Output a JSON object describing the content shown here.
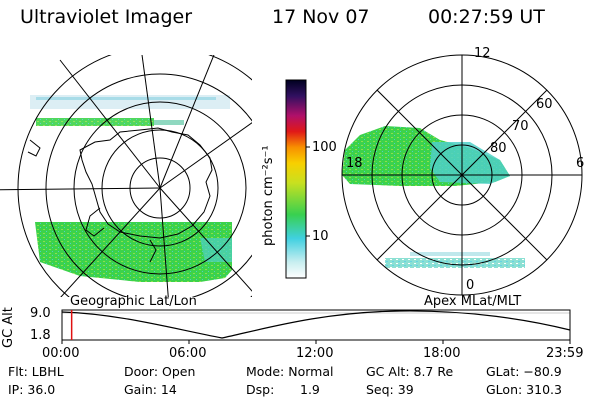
{
  "header": {
    "instrument": "Ultraviolet Imager",
    "date": "17 Nov 07",
    "time": "00:27:59 UT"
  },
  "colorbar": {
    "label": "photon cm⁻²s⁻¹",
    "ticks": [
      "100",
      "10"
    ]
  },
  "geo_panel": {
    "caption": "Geographic Lat/Lon"
  },
  "apex_panel": {
    "caption": "Apex MLat/MLT",
    "labels": {
      "t12": "12",
      "t18": "18",
      "t6": "6",
      "t0": "0",
      "l60": "60",
      "l70": "70",
      "l80": "80"
    }
  },
  "altitude_plot": {
    "ylabel": "GC Alt",
    "yticks": [
      "9.0",
      "1.8"
    ],
    "xticks": [
      "00:00",
      "06:00",
      "12:00",
      "18:00",
      "23:59"
    ],
    "marker_fraction": 0.019
  },
  "status": {
    "flt": "Flt: LBHL",
    "ip": "IP: 36.0",
    "door": "Door: Open",
    "gain": "Gain: 14",
    "mode": "Mode: Normal",
    "dsp": "Dsp:",
    "dsp_val": "1.9",
    "gcalt": "GC Alt: 8.7 Re",
    "seq": "Seq: 39",
    "glat": "GLat: −80.9",
    "glon": "GLon: 310.3"
  },
  "colors": {
    "green": "#3cd24b",
    "cyan": "#4fd0c8",
    "red": "#e01010"
  }
}
